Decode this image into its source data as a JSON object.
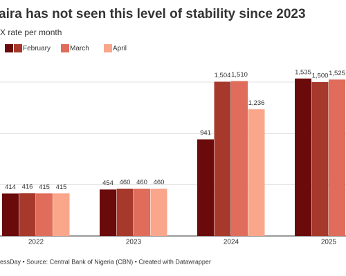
{
  "chart_data": {
    "type": "bar",
    "title": "aira has not seen this level of stability since 2023",
    "subtitle": "X rate per month",
    "footer": "essDay • Source: Central Bank of Nigeria (CBN) • Created with Datawrapper",
    "categories": [
      "2022",
      "2023",
      "2024",
      "2025"
    ],
    "series": [
      {
        "color": "#6b0a0a",
        "values": [
          414,
          454,
          941,
          1535
        ],
        "value_labels": [
          "414",
          "454",
          "941",
          "1,535"
        ]
      },
      {
        "name": "February",
        "color": "#a6392c",
        "values": [
          416,
          460,
          1504,
          1500
        ],
        "value_labels": [
          "416",
          "460",
          "1,504",
          "1,500"
        ]
      },
      {
        "name": "March",
        "color": "#e06c5b",
        "values": [
          415,
          460,
          1510,
          1525
        ],
        "value_labels": [
          "415",
          "460",
          "1,510",
          "1,525"
        ]
      },
      {
        "name": "April",
        "color": "#f9a68b",
        "values": [
          415,
          460,
          1236,
          null
        ],
        "value_labels": [
          "415",
          "460",
          "1,236",
          null
        ]
      }
    ],
    "ylim": [
      0,
      1500
    ],
    "yticks": [
      0,
      500,
      1000,
      1500
    ],
    "grid": true
  }
}
